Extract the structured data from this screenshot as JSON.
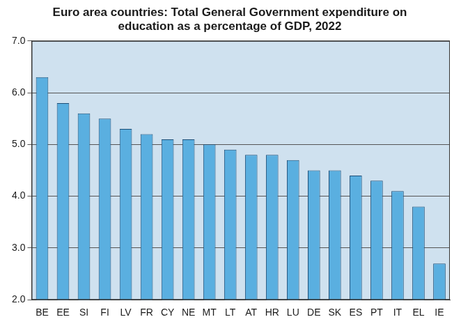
{
  "chart_data": {
    "type": "bar",
    "title": [
      "Euro area countries: Total General Government expenditure on",
      "education as a percentage of GDP, 2022"
    ],
    "categories": [
      "BE",
      "EE",
      "SI",
      "FI",
      "LV",
      "FR",
      "CY",
      "NE",
      "MT",
      "LT",
      "AT",
      "HR",
      "LU",
      "DE",
      "SK",
      "ES",
      "PT",
      "IT",
      "EL",
      "IE"
    ],
    "values": [
      6.3,
      5.8,
      5.6,
      5.5,
      5.3,
      5.2,
      5.1,
      5.1,
      5.0,
      4.9,
      4.8,
      4.8,
      4.7,
      4.5,
      4.5,
      4.4,
      4.3,
      4.1,
      3.8,
      2.7
    ],
    "color": "#5aafe0",
    "ylim": [
      2,
      7
    ],
    "yticks": [
      {
        "value": 2,
        "label": "2.0"
      },
      {
        "value": 3,
        "label": "3.0"
      },
      {
        "value": 4,
        "label": "4.0"
      },
      {
        "value": 5,
        "label": "5.0"
      },
      {
        "value": 6,
        "label": "6.0"
      },
      {
        "value": 7,
        "label": "7.0"
      }
    ],
    "grid": true
  }
}
